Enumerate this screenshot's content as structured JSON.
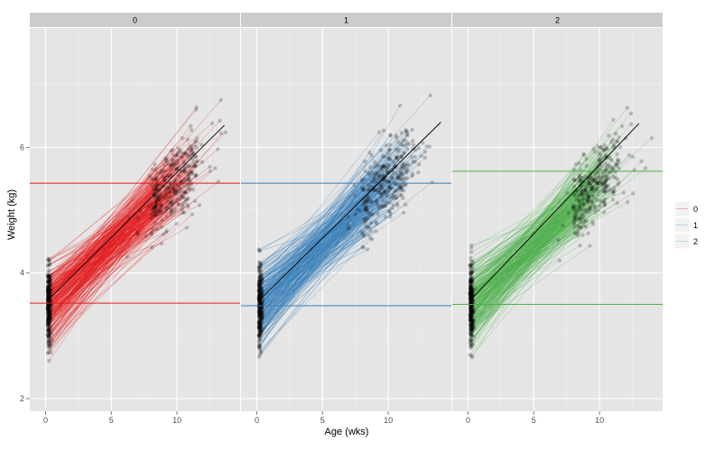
{
  "chart_data": {
    "type": "scatter",
    "xlabel": "Age (wks)",
    "ylabel": "Weight (kg)",
    "xlim": [
      -1.2,
      14.8
    ],
    "ylim": [
      1.8,
      7.9
    ],
    "x_ticks": [
      0,
      5,
      10
    ],
    "y_ticks": [
      2,
      4,
      6
    ],
    "panels": [
      {
        "label": "0",
        "color": "#E41A1C",
        "ref_lines": [
          5.43,
          3.52
        ],
        "trend": {
          "x": [
            0.1,
            13.6
          ],
          "y": [
            3.55,
            6.35
          ]
        }
      },
      {
        "label": "1",
        "color": "#377EB8",
        "ref_lines": [
          5.43,
          3.48
        ],
        "trend": {
          "x": [
            0.1,
            14.0
          ],
          "y": [
            3.55,
            6.4
          ]
        }
      },
      {
        "label": "2",
        "color": "#4DAF4A",
        "ref_lines": [
          5.62,
          3.5
        ],
        "trend": {
          "x": [
            0.1,
            13.0
          ],
          "y": [
            3.55,
            6.38
          ]
        }
      }
    ],
    "legend": {
      "entries": [
        "0",
        "1",
        "2"
      ],
      "placement": "right"
    },
    "background_color": "#E5E5E5",
    "grid": true
  }
}
